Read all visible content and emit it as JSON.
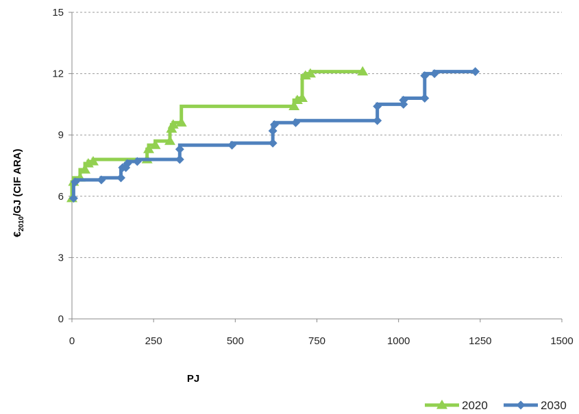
{
  "chart_data": {
    "type": "line",
    "title": "",
    "xlabel": "PJ",
    "ylabel_main": "€",
    "ylabel_sub": "2010",
    "ylabel_rest": "/GJ (CIF ARA)",
    "xlim": [
      0,
      1500
    ],
    "ylim": [
      0,
      15
    ],
    "xticks": [
      0,
      250,
      500,
      750,
      1000,
      1250,
      1500
    ],
    "yticks": [
      0,
      3,
      6,
      9,
      12,
      15
    ],
    "grid": "horizontal dashed",
    "legend_position": "bottom-right",
    "series": [
      {
        "name": "2020",
        "color": "#92d050",
        "marker": "triangle",
        "points": [
          [
            0,
            5.9
          ],
          [
            5,
            6.7
          ],
          [
            25,
            6.9
          ],
          [
            40,
            7.3
          ],
          [
            50,
            7.6
          ],
          [
            65,
            7.7
          ],
          [
            230,
            7.8
          ],
          [
            235,
            8.3
          ],
          [
            255,
            8.5
          ],
          [
            300,
            8.7
          ],
          [
            305,
            9.3
          ],
          [
            310,
            9.5
          ],
          [
            335,
            9.6
          ],
          [
            680,
            10.4
          ],
          [
            690,
            10.7
          ],
          [
            705,
            10.8
          ],
          [
            715,
            11.9
          ],
          [
            730,
            12.0
          ],
          [
            890,
            12.1
          ]
        ]
      },
      {
        "name": "2030",
        "color": "#4f81bd",
        "marker": "diamond",
        "points": [
          [
            5,
            5.9
          ],
          [
            10,
            6.7
          ],
          [
            90,
            6.8
          ],
          [
            150,
            6.9
          ],
          [
            155,
            7.4
          ],
          [
            165,
            7.4
          ],
          [
            170,
            7.6
          ],
          [
            200,
            7.7
          ],
          [
            330,
            7.8
          ],
          [
            330,
            8.3
          ],
          [
            490,
            8.5
          ],
          [
            615,
            8.6
          ],
          [
            615,
            9.2
          ],
          [
            620,
            9.5
          ],
          [
            685,
            9.6
          ],
          [
            935,
            9.7
          ],
          [
            935,
            10.4
          ],
          [
            1015,
            10.5
          ],
          [
            1015,
            10.7
          ],
          [
            1080,
            10.8
          ],
          [
            1080,
            11.9
          ],
          [
            1110,
            12.0
          ],
          [
            1235,
            12.1
          ]
        ]
      }
    ]
  }
}
